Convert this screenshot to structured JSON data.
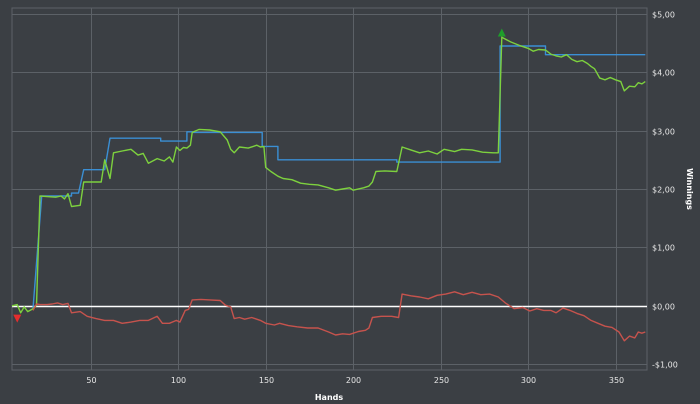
{
  "chart_data": {
    "type": "line",
    "title": "",
    "xlabel": "Hands",
    "ylabel": "Winnings",
    "xlim": [
      5,
      368
    ],
    "ylim": [
      -1.1,
      5.1
    ],
    "x_ticks": [
      50,
      100,
      150,
      200,
      250,
      300,
      350
    ],
    "x_tick_labels": [
      "50",
      "100",
      "150",
      "200",
      "250",
      "300",
      "350"
    ],
    "y_ticks": [
      -1,
      0,
      1,
      2,
      3,
      4,
      5
    ],
    "y_tick_labels": [
      "-$1,00",
      "$0,00",
      "$1,00",
      "$2,00",
      "$3,00",
      "$4,00",
      "$5,00"
    ],
    "grid": true,
    "legend": false,
    "zero_line_color": "#ffffff",
    "series": [
      {
        "color": "#3b8fd4",
        "points": [
          [
            17,
            -0.05
          ],
          [
            22,
            1.88
          ],
          [
            39,
            1.88
          ],
          [
            39,
            1.93
          ],
          [
            43,
            1.93
          ],
          [
            46,
            2.33
          ],
          [
            58,
            2.33
          ],
          [
            61,
            2.87
          ],
          [
            90,
            2.87
          ],
          [
            90,
            2.82
          ],
          [
            105,
            2.82
          ],
          [
            105,
            2.98
          ],
          [
            108,
            2.98
          ],
          [
            108,
            2.97
          ],
          [
            148,
            2.97
          ],
          [
            148,
            2.73
          ],
          [
            157,
            2.73
          ],
          [
            157,
            2.5
          ],
          [
            225,
            2.5
          ],
          [
            225,
            2.46
          ],
          [
            284,
            2.46
          ],
          [
            284,
            4.45
          ],
          [
            310,
            4.45
          ],
          [
            310,
            4.3
          ],
          [
            367,
            4.3
          ]
        ]
      },
      {
        "color": "#7dd13e",
        "points": [
          [
            5,
            0.0
          ],
          [
            8,
            0.02
          ],
          [
            10,
            -0.12
          ],
          [
            12,
            -0.02
          ],
          [
            14,
            -0.1
          ],
          [
            17,
            -0.05
          ],
          [
            19,
            0.01
          ],
          [
            21,
            1.88
          ],
          [
            30,
            1.86
          ],
          [
            33,
            1.88
          ],
          [
            35,
            1.83
          ],
          [
            37,
            1.92
          ],
          [
            39,
            1.7
          ],
          [
            44,
            1.72
          ],
          [
            46,
            2.12
          ],
          [
            56,
            2.12
          ],
          [
            58,
            2.5
          ],
          [
            61,
            2.18
          ],
          [
            63,
            2.62
          ],
          [
            68,
            2.65
          ],
          [
            73,
            2.68
          ],
          [
            77,
            2.58
          ],
          [
            80,
            2.61
          ],
          [
            83,
            2.44
          ],
          [
            88,
            2.52
          ],
          [
            92,
            2.48
          ],
          [
            95,
            2.55
          ],
          [
            97,
            2.46
          ],
          [
            99,
            2.72
          ],
          [
            101,
            2.66
          ],
          [
            103,
            2.71
          ],
          [
            105,
            2.7
          ],
          [
            107,
            2.75
          ],
          [
            108,
            2.97
          ],
          [
            112,
            3.02
          ],
          [
            118,
            3.01
          ],
          [
            124,
            2.98
          ],
          [
            128,
            2.84
          ],
          [
            130,
            2.68
          ],
          [
            132,
            2.62
          ],
          [
            135,
            2.72
          ],
          [
            140,
            2.7
          ],
          [
            145,
            2.75
          ],
          [
            147,
            2.72
          ],
          [
            149,
            2.73
          ],
          [
            150,
            2.37
          ],
          [
            153,
            2.3
          ],
          [
            157,
            2.22
          ],
          [
            160,
            2.18
          ],
          [
            165,
            2.16
          ],
          [
            170,
            2.1
          ],
          [
            175,
            2.08
          ],
          [
            180,
            2.07
          ],
          [
            186,
            2.02
          ],
          [
            190,
            1.98
          ],
          [
            194,
            2.0
          ],
          [
            198,
            2.02
          ],
          [
            200,
            1.98
          ],
          [
            206,
            2.02
          ],
          [
            209,
            2.05
          ],
          [
            211,
            2.12
          ],
          [
            213,
            2.3
          ],
          [
            218,
            2.31
          ],
          [
            225,
            2.3
          ],
          [
            228,
            2.72
          ],
          [
            233,
            2.67
          ],
          [
            238,
            2.62
          ],
          [
            243,
            2.65
          ],
          [
            248,
            2.6
          ],
          [
            252,
            2.68
          ],
          [
            258,
            2.64
          ],
          [
            262,
            2.68
          ],
          [
            268,
            2.67
          ],
          [
            274,
            2.63
          ],
          [
            280,
            2.62
          ],
          [
            283,
            2.62
          ],
          [
            285,
            4.6
          ],
          [
            290,
            4.52
          ],
          [
            295,
            4.46
          ],
          [
            300,
            4.41
          ],
          [
            303,
            4.36
          ],
          [
            306,
            4.39
          ],
          [
            310,
            4.38
          ],
          [
            313,
            4.31
          ],
          [
            316,
            4.28
          ],
          [
            319,
            4.26
          ],
          [
            322,
            4.3
          ],
          [
            325,
            4.22
          ],
          [
            328,
            4.18
          ],
          [
            331,
            4.2
          ],
          [
            334,
            4.15
          ],
          [
            336,
            4.1
          ],
          [
            338,
            4.06
          ],
          [
            341,
            3.9
          ],
          [
            344,
            3.87
          ],
          [
            347,
            3.91
          ],
          [
            350,
            3.87
          ],
          [
            353,
            3.84
          ],
          [
            355,
            3.68
          ],
          [
            358,
            3.76
          ],
          [
            361,
            3.75
          ],
          [
            363,
            3.82
          ],
          [
            365,
            3.8
          ],
          [
            367,
            3.84
          ]
        ]
      },
      {
        "color": "#c6534d",
        "points": [
          [
            17,
            -0.08
          ],
          [
            19,
            0.03
          ],
          [
            21,
            0.02
          ],
          [
            25,
            0.02
          ],
          [
            28,
            0.03
          ],
          [
            31,
            0.05
          ],
          [
            34,
            0.02
          ],
          [
            37,
            0.04
          ],
          [
            39,
            -0.12
          ],
          [
            44,
            -0.1
          ],
          [
            48,
            -0.18
          ],
          [
            53,
            -0.22
          ],
          [
            58,
            -0.25
          ],
          [
            63,
            -0.25
          ],
          [
            68,
            -0.3
          ],
          [
            73,
            -0.28
          ],
          [
            78,
            -0.25
          ],
          [
            83,
            -0.25
          ],
          [
            88,
            -0.18
          ],
          [
            91,
            -0.3
          ],
          [
            95,
            -0.3
          ],
          [
            99,
            -0.25
          ],
          [
            101,
            -0.28
          ],
          [
            104,
            -0.08
          ],
          [
            106,
            -0.06
          ],
          [
            108,
            0.1
          ],
          [
            113,
            0.11
          ],
          [
            118,
            0.1
          ],
          [
            124,
            0.09
          ],
          [
            127,
            0.01
          ],
          [
            130,
            -0.02
          ],
          [
            132,
            -0.22
          ],
          [
            135,
            -0.2
          ],
          [
            138,
            -0.23
          ],
          [
            142,
            -0.2
          ],
          [
            147,
            -0.25
          ],
          [
            150,
            -0.3
          ],
          [
            155,
            -0.33
          ],
          [
            158,
            -0.3
          ],
          [
            163,
            -0.34
          ],
          [
            168,
            -0.36
          ],
          [
            174,
            -0.38
          ],
          [
            180,
            -0.38
          ],
          [
            186,
            -0.45
          ],
          [
            190,
            -0.5
          ],
          [
            194,
            -0.48
          ],
          [
            198,
            -0.49
          ],
          [
            203,
            -0.44
          ],
          [
            207,
            -0.42
          ],
          [
            209,
            -0.38
          ],
          [
            211,
            -0.2
          ],
          [
            216,
            -0.18
          ],
          [
            222,
            -0.18
          ],
          [
            226,
            -0.2
          ],
          [
            228,
            0.2
          ],
          [
            233,
            0.17
          ],
          [
            238,
            0.15
          ],
          [
            243,
            0.12
          ],
          [
            248,
            0.18
          ],
          [
            253,
            0.2
          ],
          [
            258,
            0.24
          ],
          [
            263,
            0.19
          ],
          [
            268,
            0.23
          ],
          [
            273,
            0.19
          ],
          [
            278,
            0.2
          ],
          [
            283,
            0.15
          ],
          [
            287,
            0.05
          ],
          [
            292,
            -0.05
          ],
          [
            297,
            -0.03
          ],
          [
            301,
            -0.09
          ],
          [
            305,
            -0.05
          ],
          [
            309,
            -0.08
          ],
          [
            313,
            -0.08
          ],
          [
            316,
            -0.12
          ],
          [
            320,
            -0.04
          ],
          [
            324,
            -0.08
          ],
          [
            328,
            -0.13
          ],
          [
            332,
            -0.17
          ],
          [
            336,
            -0.25
          ],
          [
            340,
            -0.3
          ],
          [
            344,
            -0.35
          ],
          [
            348,
            -0.37
          ],
          [
            352,
            -0.45
          ],
          [
            355,
            -0.6
          ],
          [
            358,
            -0.52
          ],
          [
            361,
            -0.55
          ],
          [
            363,
            -0.45
          ],
          [
            365,
            -0.47
          ],
          [
            367,
            -0.45
          ]
        ]
      }
    ],
    "markers": [
      {
        "x": 8,
        "y": -0.22,
        "shape": "triangle-down",
        "color": "#e52d2d"
      },
      {
        "x": 285,
        "y": 4.68,
        "shape": "triangle-up",
        "color": "#1e9e2a"
      }
    ]
  }
}
